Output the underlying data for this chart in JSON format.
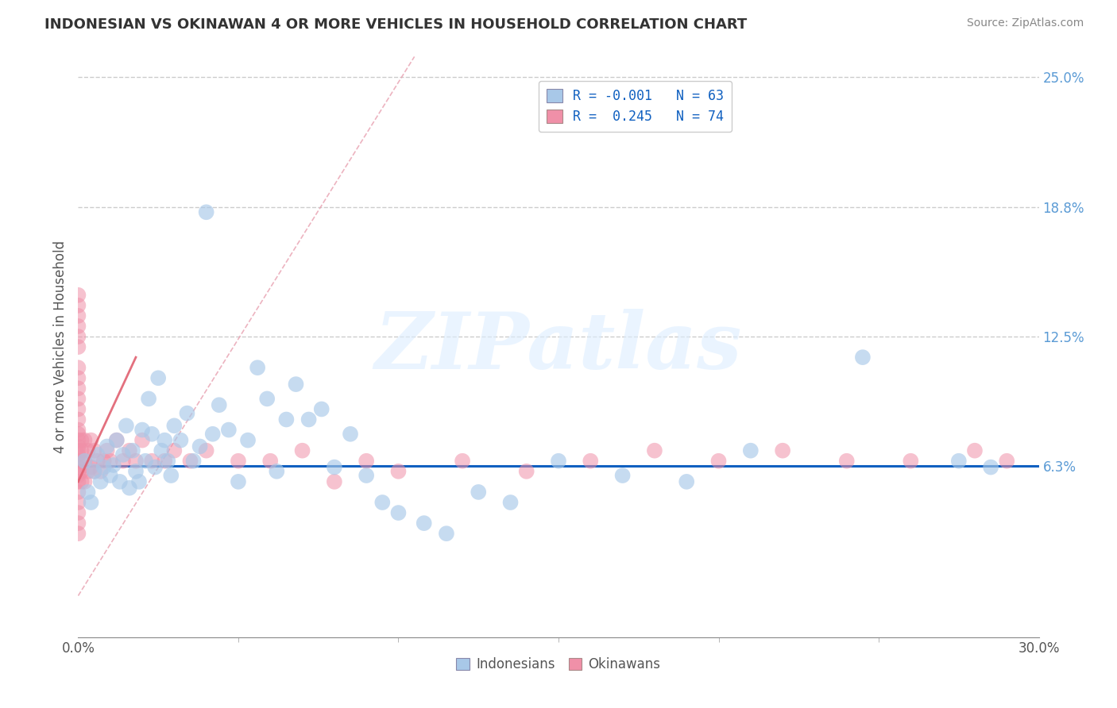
{
  "title": "INDONESIAN VS OKINAWAN 4 OR MORE VEHICLES IN HOUSEHOLD CORRELATION CHART",
  "source": "Source: ZipAtlas.com",
  "ylabel": "4 or more Vehicles in Household",
  "xlim": [
    0.0,
    30.0
  ],
  "ylim": [
    -2.0,
    26.0
  ],
  "ytick_labels_right": [
    "25.0%",
    "18.8%",
    "12.5%",
    "6.3%"
  ],
  "ytick_values_right": [
    25.0,
    18.75,
    12.5,
    6.25
  ],
  "hline_y": 6.25,
  "legend_r1": "R = -0.001",
  "legend_n1": "N = 63",
  "legend_r2": "R =  0.245",
  "legend_n2": "N = 74",
  "color_indonesian": "#a8c8e8",
  "color_okinawan": "#f090a8",
  "color_hline": "#1060c0",
  "color_diag_dashed": "#e8a0b0",
  "color_pink_solid": "#e06070",
  "color_title": "#333333",
  "color_right_axis": "#5b9bd5",
  "color_legend_text": "#1060c0",
  "watermark_text": "ZIPatlas",
  "indonesian_x": [
    0.2,
    0.3,
    0.4,
    0.5,
    0.6,
    0.7,
    0.8,
    0.9,
    1.0,
    1.1,
    1.2,
    1.3,
    1.4,
    1.5,
    1.6,
    1.7,
    1.8,
    1.9,
    2.0,
    2.1,
    2.2,
    2.3,
    2.4,
    2.5,
    2.6,
    2.7,
    2.8,
    2.9,
    3.0,
    3.2,
    3.4,
    3.6,
    3.8,
    4.0,
    4.2,
    4.4,
    4.7,
    5.0,
    5.3,
    5.6,
    5.9,
    6.2,
    6.5,
    6.8,
    7.2,
    7.6,
    8.0,
    8.5,
    9.0,
    9.5,
    10.0,
    10.8,
    11.5,
    12.5,
    13.5,
    15.0,
    17.0,
    19.0,
    21.0,
    24.5,
    27.5,
    28.5
  ],
  "indonesian_y": [
    6.5,
    5.0,
    4.5,
    6.0,
    6.8,
    5.5,
    6.2,
    7.2,
    5.8,
    6.3,
    7.5,
    5.5,
    6.8,
    8.2,
    5.2,
    7.0,
    6.0,
    5.5,
    8.0,
    6.5,
    9.5,
    7.8,
    6.2,
    10.5,
    7.0,
    7.5,
    6.5,
    5.8,
    8.2,
    7.5,
    8.8,
    6.5,
    7.2,
    18.5,
    7.8,
    9.2,
    8.0,
    5.5,
    7.5,
    11.0,
    9.5,
    6.0,
    8.5,
    10.2,
    8.5,
    9.0,
    6.2,
    7.8,
    5.8,
    4.5,
    4.0,
    3.5,
    3.0,
    5.0,
    4.5,
    6.5,
    5.8,
    5.5,
    7.0,
    11.5,
    6.5,
    6.2
  ],
  "okinawan_x": [
    0.0,
    0.0,
    0.0,
    0.0,
    0.0,
    0.0,
    0.0,
    0.0,
    0.0,
    0.0,
    0.0,
    0.0,
    0.0,
    0.0,
    0.0,
    0.0,
    0.0,
    0.0,
    0.0,
    0.0,
    0.0,
    0.0,
    0.0,
    0.0,
    0.0,
    0.0,
    0.0,
    0.0,
    0.1,
    0.1,
    0.1,
    0.1,
    0.1,
    0.2,
    0.2,
    0.2,
    0.3,
    0.3,
    0.4,
    0.4,
    0.5,
    0.5,
    0.6,
    0.7,
    0.8,
    0.9,
    1.0,
    1.2,
    1.4,
    1.6,
    1.8,
    2.0,
    2.3,
    2.7,
    3.0,
    3.5,
    4.0,
    5.0,
    6.0,
    7.0,
    8.0,
    9.0,
    10.0,
    12.0,
    14.0,
    16.0,
    18.0,
    20.0,
    22.0,
    24.0,
    26.0,
    28.0,
    29.0
  ],
  "okinawan_y": [
    3.0,
    3.5,
    4.0,
    4.5,
    5.0,
    5.5,
    5.8,
    6.0,
    6.2,
    6.5,
    6.8,
    7.0,
    7.2,
    7.5,
    7.8,
    8.0,
    8.5,
    9.0,
    9.5,
    10.0,
    10.5,
    11.0,
    12.0,
    12.5,
    13.0,
    13.5,
    14.0,
    14.5,
    5.5,
    6.0,
    6.5,
    7.0,
    7.5,
    5.5,
    6.5,
    7.5,
    6.0,
    7.0,
    6.2,
    7.5,
    6.0,
    7.0,
    6.5,
    6.0,
    6.5,
    7.0,
    6.5,
    7.5,
    6.5,
    7.0,
    6.5,
    7.5,
    6.5,
    6.5,
    7.0,
    6.5,
    7.0,
    6.5,
    6.5,
    7.0,
    5.5,
    6.5,
    6.0,
    6.5,
    6.0,
    6.5,
    7.0,
    6.5,
    7.0,
    6.5,
    6.5,
    7.0,
    6.5
  ],
  "diag_x1": 0.0,
  "diag_y1": 0.0,
  "diag_x2": 10.5,
  "diag_y2": 26.0,
  "pink_line_x1": 0.0,
  "pink_line_y1": 5.5,
  "pink_line_x2": 1.8,
  "pink_line_y2": 11.5
}
